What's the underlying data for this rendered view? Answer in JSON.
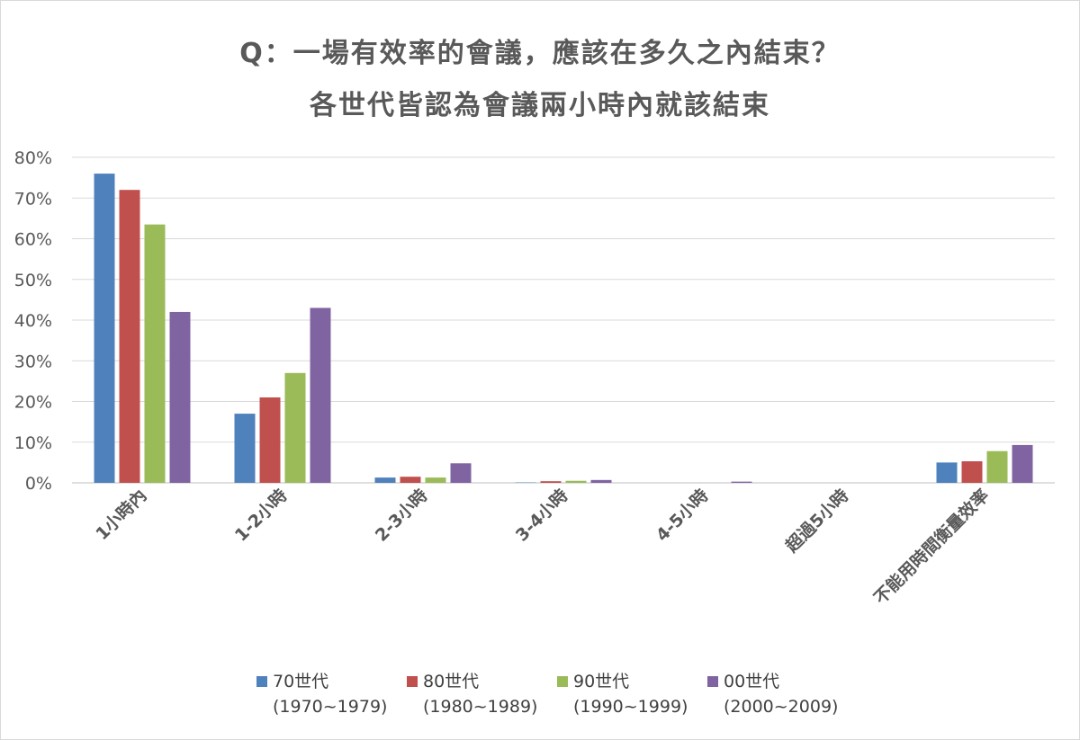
{
  "chart_data": {
    "type": "bar",
    "title": "Q：一場有效率的會議，應該在多久之內結束？",
    "subtitle": "各世代皆認為會議兩小時內就該結束",
    "categories": [
      "1小時內",
      "1-2小時",
      "2-3小時",
      "3-4小時",
      "4-5小時",
      "超過5小時",
      "不能用時間衡量效率"
    ],
    "series": [
      {
        "name": "70世代",
        "range": "(1970~1979)",
        "color": "#4f81bd",
        "values": [
          76,
          17,
          1.3,
          0.1,
          0,
          0,
          5
        ]
      },
      {
        "name": "80世代",
        "range": "(1980~1989)",
        "color": "#c0504d",
        "values": [
          72,
          21,
          1.5,
          0.4,
          0,
          0,
          5.3
        ]
      },
      {
        "name": "90世代",
        "range": "(1990~1999)",
        "color": "#9bbb59",
        "values": [
          63.5,
          27,
          1.3,
          0.5,
          0,
          0,
          7.8
        ]
      },
      {
        "name": "00世代",
        "range": "(2000~2009)",
        "color": "#8064a2",
        "values": [
          42,
          43,
          4.8,
          0.7,
          0.3,
          0,
          9.3
        ]
      }
    ],
    "yticks": [
      "0%",
      "10%",
      "20%",
      "30%",
      "40%",
      "50%",
      "60%",
      "70%",
      "80%"
    ],
    "ylim": [
      0,
      80
    ],
    "grid": true,
    "legend_position": "bottom"
  }
}
